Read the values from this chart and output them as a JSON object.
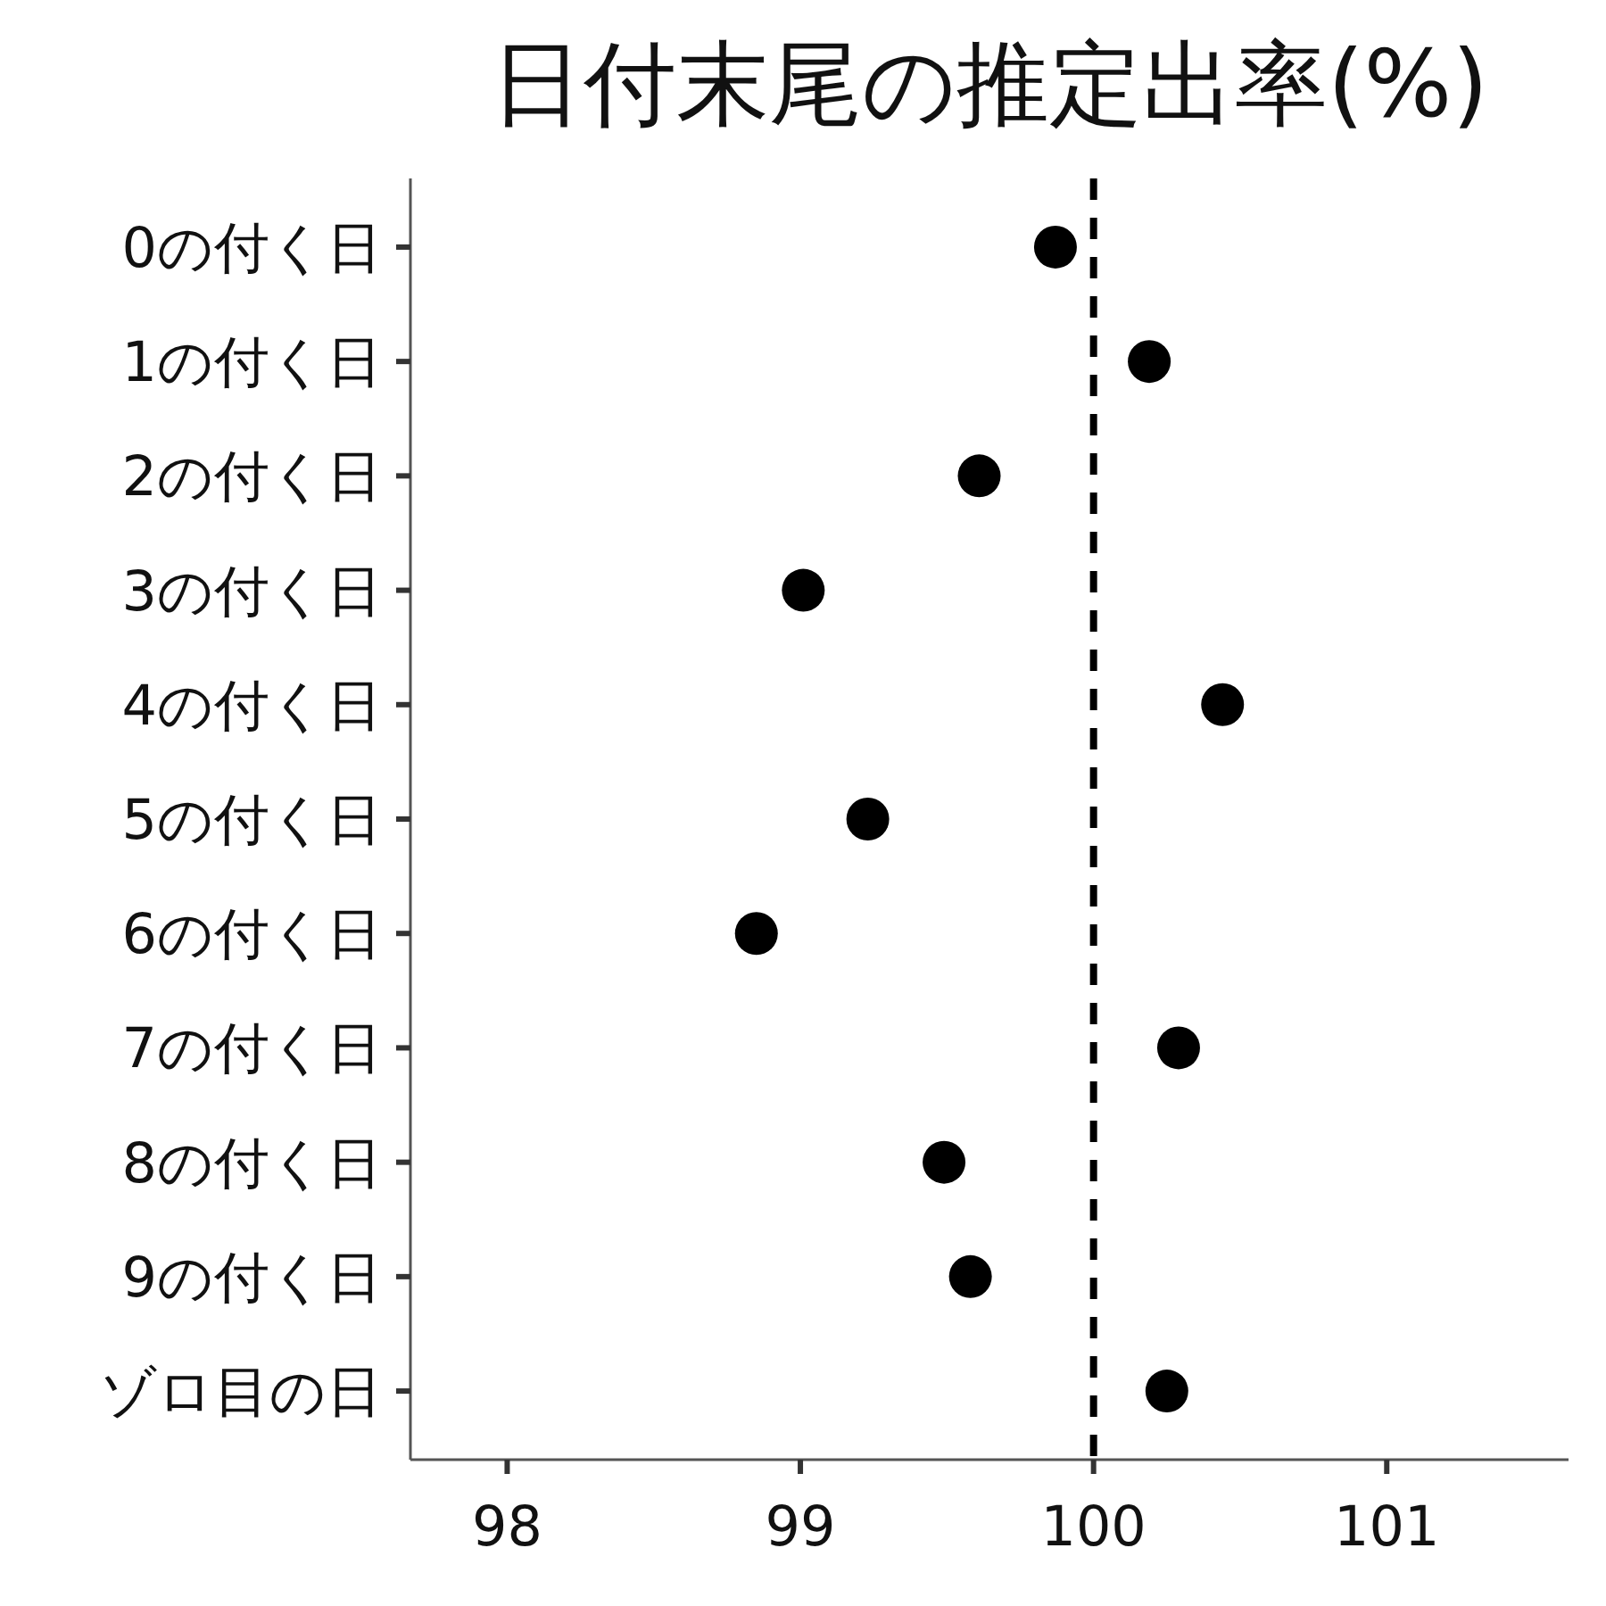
{
  "chart_data": {
    "type": "scatter",
    "title": "日付末尾の推定出率(%)",
    "orientation": "horizontal",
    "categories": [
      "0の付く日",
      "1の付く日",
      "2の付く日",
      "3の付く日",
      "4の付く日",
      "5の付く日",
      "6の付く日",
      "7の付く日",
      "8の付く日",
      "9の付く日",
      "ゾロ目の日"
    ],
    "series": [
      {
        "color": "#000000",
        "values": [
          99.87,
          100.19,
          99.61,
          99.01,
          100.44,
          99.23,
          98.85,
          100.29,
          99.49,
          99.58,
          100.25
        ]
      }
    ],
    "xlim": [
      97.67,
      101.62
    ],
    "xticks": [
      98,
      99,
      100,
      101
    ],
    "ref_lines": [
      {
        "axis": "x",
        "value": 100,
        "color": "#000000",
        "line_style": "dashed"
      }
    ],
    "marker": "circle",
    "grid": false
  }
}
